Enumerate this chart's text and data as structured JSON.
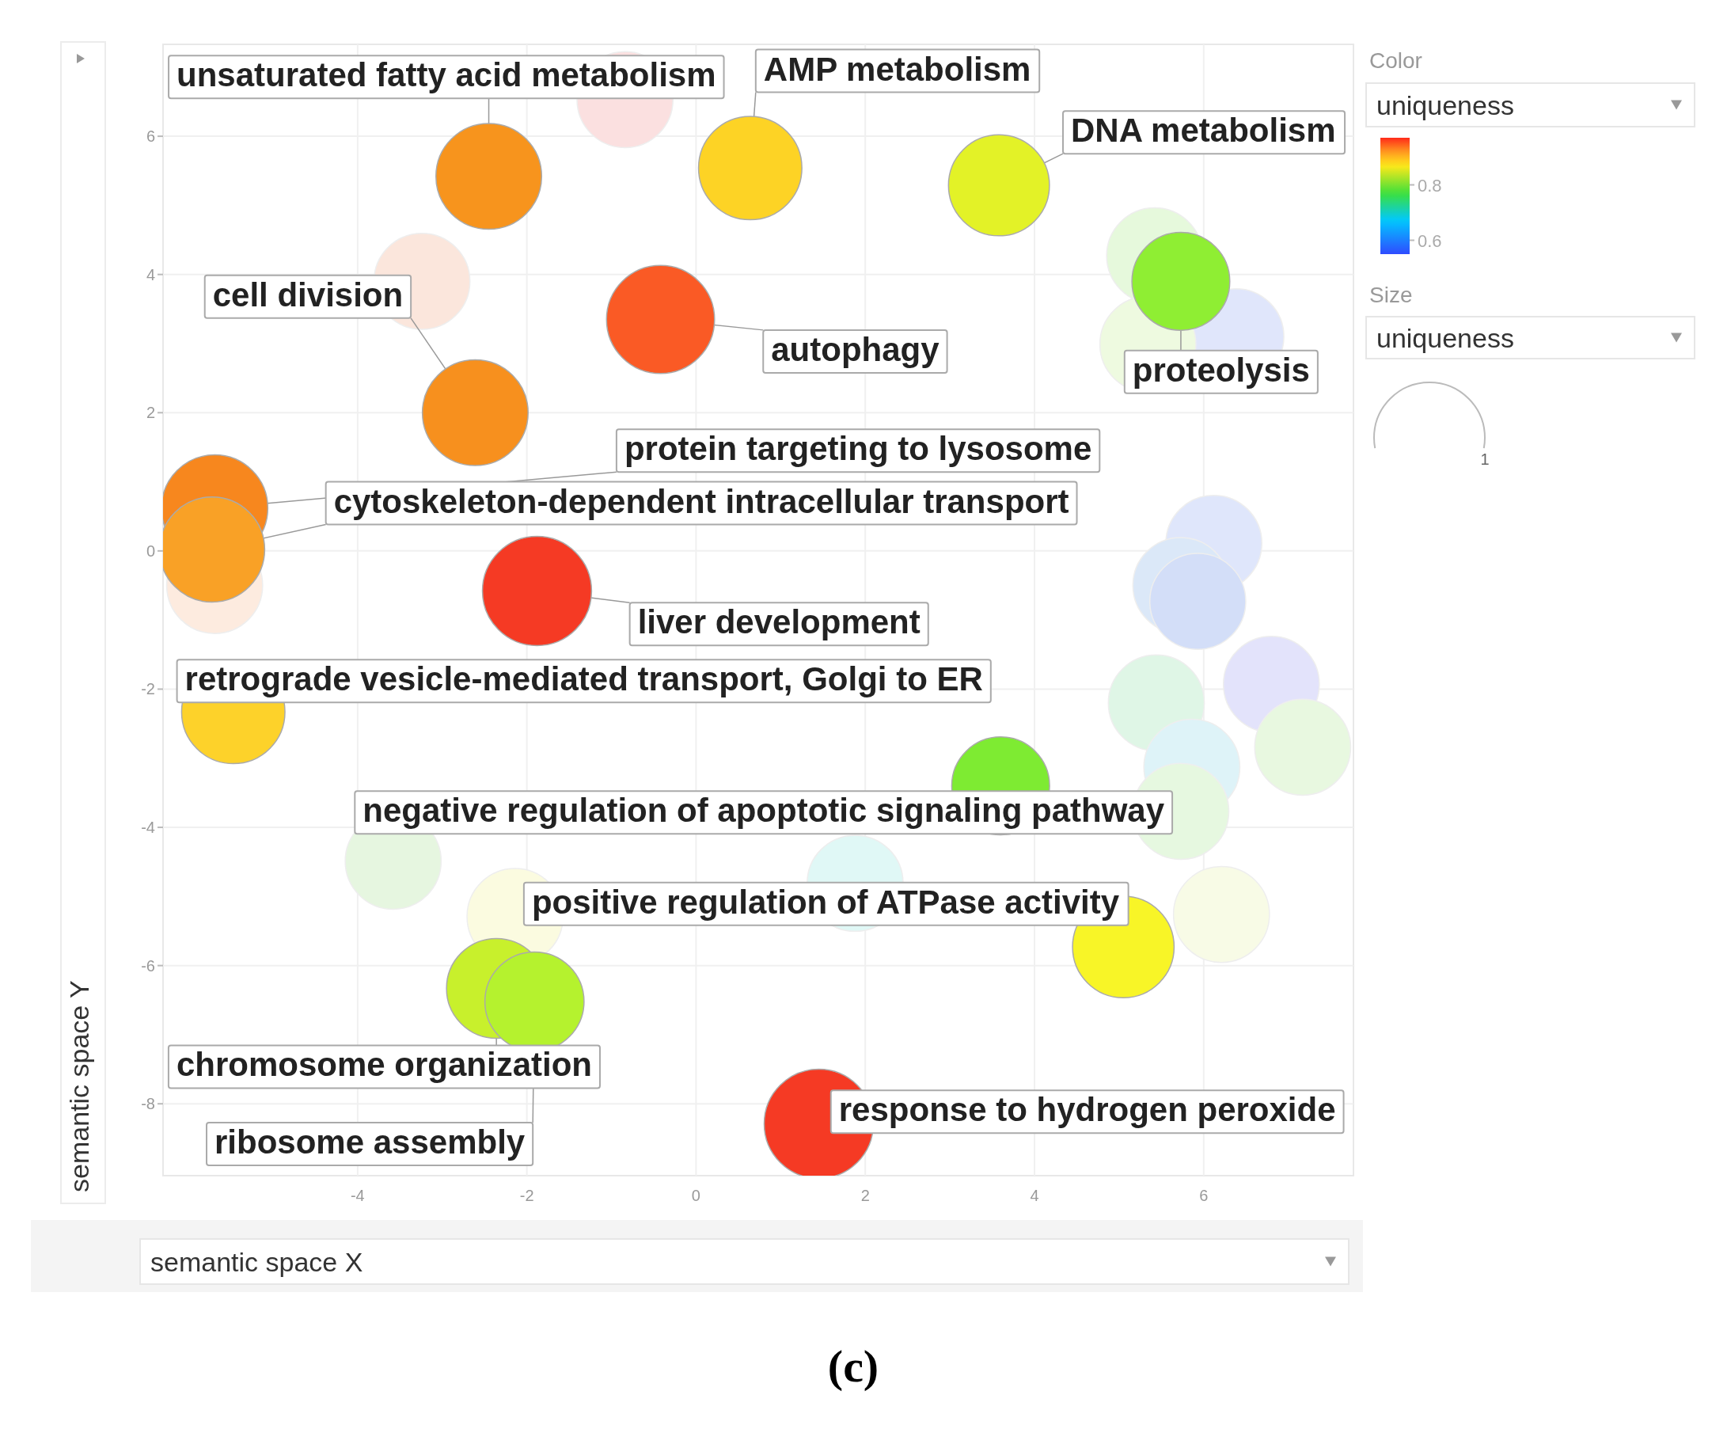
{
  "chart_data": {
    "type": "bubble",
    "xlabel": "semantic space X",
    "ylabel": "semantic space Y",
    "clabel": "uniqueness",
    "xlim": [
      -6.3,
      7.77
    ],
    "ylim": [
      -9.04,
      7.33
    ],
    "xticks": [
      -4,
      -2,
      0,
      2,
      4,
      6
    ],
    "yticks": [
      -8,
      -6,
      -4,
      -2,
      0,
      2,
      4,
      6
    ],
    "grid": true,
    "clim": [
      0.55,
      0.97
    ],
    "cticks": [
      0.6,
      0.8
    ],
    "size_legend": [
      1
    ],
    "series": [
      {
        "x": [
          -0.84,
          -3.24,
          5.42,
          6.38,
          5.34,
          -5.69,
          6.12,
          5.73,
          5.93,
          6.8,
          5.44,
          7.17,
          5.86,
          5.73,
          -3.58,
          1.88,
          -2.14,
          6.21
        ],
        "values": [
          6.53,
          3.9,
          4.27,
          3.1,
          2.99,
          -0.5,
          0.11,
          -0.5,
          -0.73,
          -1.93,
          -2.2,
          -2.84,
          -3.13,
          -3.77,
          -4.49,
          -4.81,
          -5.29,
          -5.26
        ],
        "sizes": [
          0.75,
          0.75,
          0.75,
          0.75,
          0.75,
          0.75,
          0.75,
          0.75,
          0.75,
          0.75,
          0.75,
          0.75,
          0.75,
          0.75,
          0.75,
          0.75,
          0.75,
          0.75
        ],
        "colors": [
          "#fbe0e0",
          "#fbe6dc",
          "#e6f9dc",
          "#e0e6fb",
          "#eefae0",
          "#fdebdf",
          "#dfe6fb",
          "#dbe8f8",
          "#d3def8",
          "#e3e3fb",
          "#dff6e6",
          "#e8f8e0",
          "#def3f8",
          "#e6f8e0",
          "#e6f6e0",
          "#e0f8f6",
          "#fbfbe0",
          "#f8fbe6"
        ]
      },
      {
        "x": [
          -2.45,
          0.64,
          3.58,
          -2.61,
          -0.42,
          5.73,
          -5.69,
          -5.72,
          -1.88,
          -5.47,
          3.6,
          5.05,
          -2.36,
          -1.91,
          1.45
        ],
        "values": [
          5.42,
          5.54,
          5.29,
          2.0,
          3.35,
          3.9,
          0.62,
          0.02,
          -0.58,
          -2.33,
          -3.4,
          -5.73,
          -6.33,
          -6.52,
          -8.29
        ],
        "colors": [
          "#f7941d",
          "#fdd325",
          "#e3f227",
          "#f7901e",
          "#fa5a25",
          "#8fee33",
          "#f7871e",
          "#f9a126",
          "#f53a24",
          "#fdd22a",
          "#7eeb32",
          "#f8f527",
          "#c8f02c",
          "#b5f22e",
          "#f53a24"
        ],
        "sizes": [
          0.91,
          0.87,
          0.83,
          0.91,
          0.95,
          0.78,
          0.92,
          0.9,
          0.97,
          0.87,
          0.78,
          0.84,
          0.81,
          0.8,
          0.97
        ]
      }
    ],
    "annotations": [
      {
        "text": "unsaturated fatty acid metabolism",
        "x": -2.45,
        "y": 5.42
      },
      {
        "text": "AMP metabolism",
        "x": 0.64,
        "y": 5.54
      },
      {
        "text": "DNA metabolism",
        "x": 3.58,
        "y": 5.29
      },
      {
        "text": "cell division",
        "x": -2.61,
        "y": 2.0
      },
      {
        "text": "autophagy",
        "x": -0.42,
        "y": 3.35
      },
      {
        "text": "proteolysis",
        "x": 5.73,
        "y": 3.9
      },
      {
        "text": "protein targeting to lysosome",
        "x": -5.69,
        "y": 0.62
      },
      {
        "text": "cytoskeleton-dependent intracellular transport",
        "x": -5.72,
        "y": 0.02
      },
      {
        "text": "liver development",
        "x": -1.88,
        "y": -0.58
      },
      {
        "text": "retrograde vesicle-mediated transport, Golgi to ER",
        "x": -5.47,
        "y": -2.33
      },
      {
        "text": "negative regulation of apoptotic signaling pathway",
        "x": 3.6,
        "y": -3.4
      },
      {
        "text": "positive regulation of ATPase activity",
        "x": 5.05,
        "y": -5.73
      },
      {
        "text": "chromosome organization",
        "x": -2.36,
        "y": -6.33
      },
      {
        "text": "ribosome assembly",
        "x": -1.91,
        "y": -6.52
      },
      {
        "text": "response to hydrogen peroxide",
        "x": 1.45,
        "y": -8.29
      },
      "Color",
      "Size",
      "uniqueness",
      "(c)"
    ]
  }
}
